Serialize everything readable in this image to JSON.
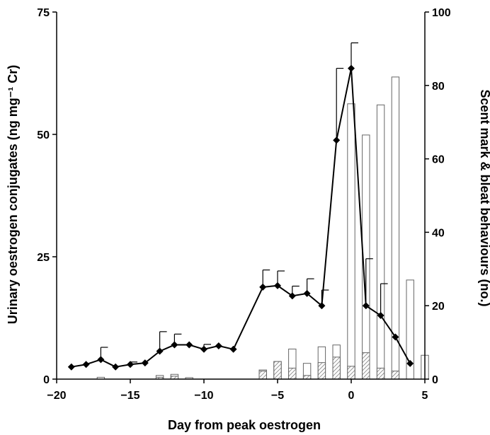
{
  "chart_data": {
    "type": "bar+line",
    "xlabel": "Day from peak oestrogen",
    "ylabel_left": "Urinary oestrogen conjugates (ng mg⁻¹ Cr)",
    "ylabel_right": "Scent mark & bleat behaviours (no.)",
    "xlim": [
      -20,
      5
    ],
    "xticks": [
      -20,
      -15,
      -10,
      -5,
      0,
      5
    ],
    "ylim_left": [
      0,
      75
    ],
    "yticks_left": [
      0,
      25,
      50,
      75
    ],
    "ylim_right": [
      0,
      100
    ],
    "yticks_right": [
      0,
      20,
      40,
      60,
      80,
      100
    ],
    "series": [
      {
        "kind": "line",
        "axis": "left",
        "x": [
          -19,
          -18,
          -17,
          -16,
          -15,
          -14,
          -13,
          -12,
          -11,
          -10,
          -9,
          -8,
          -6,
          -5,
          -4,
          -3,
          -2,
          -1,
          0,
          1,
          2,
          3,
          4
        ],
        "values": [
          2.5,
          3.0,
          4.0,
          2.5,
          3.0,
          3.3,
          5.7,
          7.0,
          7.0,
          6.1,
          6.8,
          6.1,
          18.8,
          19.1,
          17.0,
          17.5,
          15.0,
          48.8,
          63.5,
          15.0,
          13.0,
          8.6,
          3.2
        ],
        "error": [
          0,
          0,
          2.5,
          0,
          0.5,
          0,
          4.0,
          2.2,
          0,
          1.0,
          0,
          0,
          3.5,
          3.0,
          2.0,
          3.0,
          3.2,
          14.7,
          5.2,
          9.6,
          6.5,
          0,
          0
        ],
        "color": "#000000"
      },
      {
        "kind": "bar",
        "axis": "right",
        "fill": "white",
        "x": [
          -17,
          -13,
          -12,
          -11,
          -6,
          -5,
          -4,
          -3,
          -2,
          -1,
          0,
          1,
          2,
          3,
          4,
          5
        ],
        "values": [
          0.5,
          1,
          1.3,
          0.4,
          2.5,
          4.8,
          8.2,
          4.3,
          8.8,
          9.3,
          75.0,
          66.5,
          74.7,
          82.3,
          27.0,
          6.5
        ]
      },
      {
        "kind": "bar",
        "axis": "right",
        "fill": "hatched",
        "x": [
          -13,
          -12,
          -6,
          -5,
          -4,
          -3,
          -2,
          -1,
          0,
          1,
          2,
          3
        ],
        "values": [
          0.5,
          0.8,
          2.2,
          4.8,
          3.0,
          1.0,
          4.5,
          6.0,
          3.5,
          7.2,
          3.0,
          2.2
        ]
      }
    ]
  }
}
